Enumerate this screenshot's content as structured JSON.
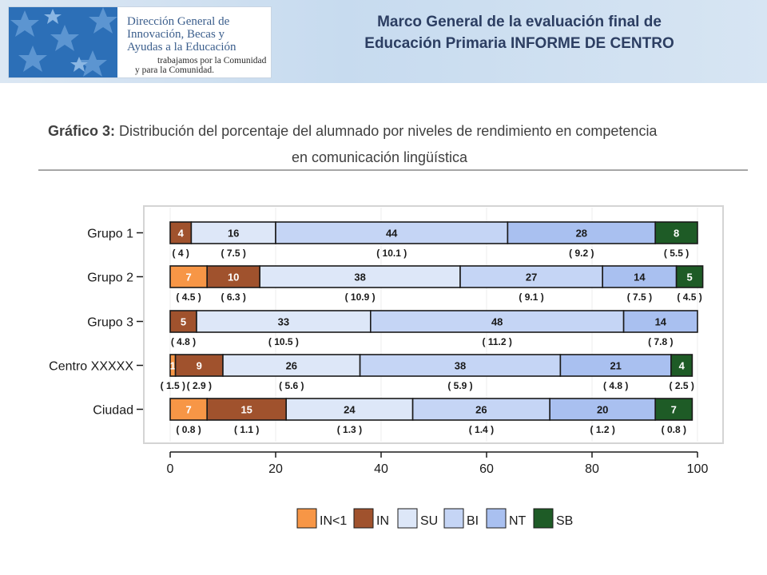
{
  "header": {
    "logo_line1": "Dirección General de",
    "logo_line2": "Innovación, Becas y",
    "logo_line3": "Ayudas a la Educación",
    "logo_line4": "trabajamos por la Comunidad",
    "logo_line5": "y para la Comunidad.",
    "title_line1": "Marco General de la evaluación final de",
    "title_line2": "Educación Primaria INFORME DE CENTRO"
  },
  "chart_title": {
    "prefix": "Gráfico 3:",
    "line1": "Distribución del porcentaje del alumnado por niveles de rendimiento en competencia",
    "line2": "en comunicación lingüística"
  },
  "chart_data": {
    "type": "bar",
    "orientation": "horizontal-stacked",
    "categories": [
      "Grupo 1",
      "Grupo 2",
      "Grupo 3",
      "Centro XXXXX",
      "Ciudad"
    ],
    "series": [
      {
        "name": "IN<1",
        "color": "#f79646",
        "values": [
          0,
          7,
          0,
          1,
          7
        ],
        "labels": [
          "",
          "7",
          "",
          "1",
          "7"
        ],
        "errors": [
          "",
          "( 4.5 )",
          "",
          "( 1.5 )",
          "( 0.8 )"
        ]
      },
      {
        "name": "IN",
        "color": "#a0522d",
        "values": [
          4,
          10,
          5,
          9,
          15
        ],
        "labels": [
          "4",
          "10",
          "5",
          "9",
          "15"
        ],
        "errors": [
          "( 4 )",
          "( 6.3 )",
          "( 4.8 )",
          "( 2.9 )",
          "( 1.1 )"
        ]
      },
      {
        "name": "SU",
        "color": "#dde7f8",
        "values": [
          16,
          38,
          33,
          26,
          24
        ],
        "labels": [
          "16",
          "38",
          "33",
          "26",
          "24"
        ],
        "errors": [
          "( 7.5 )",
          "( 10.9 )",
          "( 10.5 )",
          "( 5.6 )",
          "( 1.3 )"
        ]
      },
      {
        "name": "BI",
        "color": "#c5d5f5",
        "values": [
          44,
          27,
          48,
          38,
          26
        ],
        "labels": [
          "44",
          "27",
          "48",
          "38",
          "26"
        ],
        "errors": [
          "( 10.1 )",
          "( 9.1 )",
          "( 11.2 )",
          "( 5.9 )",
          "( 1.4 )"
        ]
      },
      {
        "name": "NT",
        "color": "#a9c0f0",
        "values": [
          28,
          14,
          14,
          21,
          20
        ],
        "labels": [
          "28",
          "14",
          "14",
          "21",
          "20"
        ],
        "errors": [
          "( 9.2 )",
          "( 7.5 )",
          "( 7.8 )",
          "( 4.8 )",
          "( 1.2 )"
        ]
      },
      {
        "name": "SB",
        "color": "#1e5b26",
        "values": [
          8,
          5,
          0,
          4,
          7
        ],
        "labels": [
          "8",
          "5",
          "",
          "4",
          "7"
        ],
        "errors": [
          "( 5.5 )",
          "( 4.5 )",
          "",
          "( 2.5 )",
          "( 0.8 )"
        ]
      }
    ],
    "xlim": [
      0,
      100
    ],
    "xticks": [
      "0",
      "20",
      "40",
      "60",
      "80",
      "100"
    ],
    "grid": true,
    "legend_position": "bottom"
  }
}
